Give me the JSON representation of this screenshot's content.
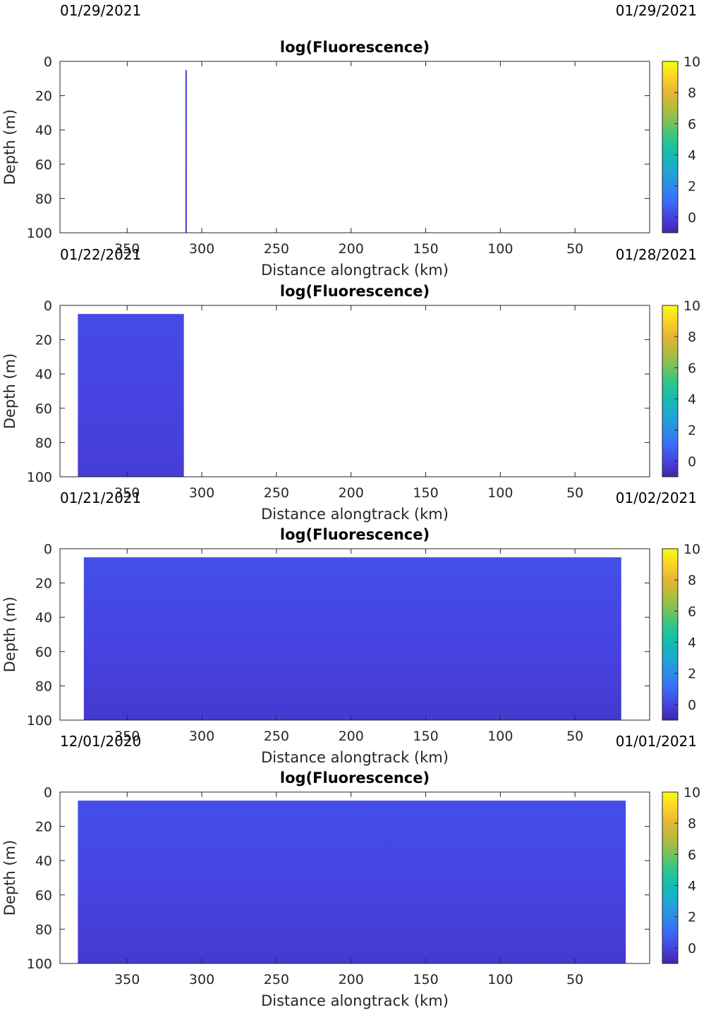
{
  "chart_data": [
    {
      "type": "heatmap",
      "title": "log(Fluorescence)",
      "xlabel": "Distance alongtrack (km)",
      "ylabel": "Depth (m)",
      "date_left": "01/29/2021",
      "date_right": "01/29/2021",
      "xlim": [
        0,
        395
      ],
      "x_reversed": true,
      "ylim": [
        0,
        100
      ],
      "y_reversed": true,
      "x_ticks": [
        350,
        300,
        250,
        200,
        150,
        100,
        50
      ],
      "y_ticks": [
        0,
        20,
        40,
        60,
        80,
        100
      ],
      "colorbar": {
        "limits": [
          -1,
          10
        ],
        "ticks": [
          0,
          2,
          4,
          6,
          8,
          10
        ],
        "colormap": "parula"
      },
      "data_x_range": [
        311,
        310
      ],
      "data_depth_range": [
        5,
        100
      ],
      "value_surface": 0.1,
      "value_deep": -0.1
    },
    {
      "type": "heatmap",
      "title": "log(Fluorescence)",
      "xlabel": "Distance alongtrack (km)",
      "ylabel": "Depth (m)",
      "date_left": "01/22/2021",
      "date_right": "01/28/2021",
      "xlim": [
        0,
        395
      ],
      "x_reversed": true,
      "ylim": [
        0,
        100
      ],
      "y_reversed": true,
      "x_ticks": [
        350,
        300,
        250,
        200,
        150,
        100,
        50
      ],
      "y_ticks": [
        0,
        20,
        40,
        60,
        80,
        100
      ],
      "colorbar": {
        "limits": [
          -1,
          10
        ],
        "ticks": [
          0,
          2,
          4,
          6,
          8,
          10
        ],
        "colormap": "parula"
      },
      "data_x_range": [
        383,
        312
      ],
      "data_depth_range": [
        5,
        100
      ],
      "value_surface": 0.2,
      "value_deep": -0.2
    },
    {
      "type": "heatmap",
      "title": "log(Fluorescence)",
      "xlabel": "Distance alongtrack (km)",
      "ylabel": "Depth (m)",
      "date_left": "01/21/2021",
      "date_right": "01/02/2021",
      "xlim": [
        0,
        395
      ],
      "x_reversed": true,
      "ylim": [
        0,
        100
      ],
      "y_reversed": true,
      "x_ticks": [
        350,
        300,
        250,
        200,
        150,
        100,
        50
      ],
      "y_ticks": [
        0,
        20,
        40,
        60,
        80,
        100
      ],
      "colorbar": {
        "limits": [
          -1,
          10
        ],
        "ticks": [
          0,
          2,
          4,
          6,
          8,
          10
        ],
        "colormap": "parula"
      },
      "data_x_range": [
        379,
        19
      ],
      "data_depth_range": [
        5,
        100
      ],
      "value_surface": 0.3,
      "value_deep": -0.3
    },
    {
      "type": "heatmap",
      "title": "log(Fluorescence)",
      "xlabel": "Distance alongtrack (km)",
      "ylabel": "Depth (m)",
      "date_left": "12/01/2020",
      "date_right": "01/01/2021",
      "xlim": [
        0,
        395
      ],
      "x_reversed": true,
      "ylim": [
        0,
        100
      ],
      "y_reversed": true,
      "x_ticks": [
        350,
        300,
        250,
        200,
        150,
        100,
        50
      ],
      "y_ticks": [
        0,
        20,
        40,
        60,
        80,
        100
      ],
      "colorbar": {
        "limits": [
          -1,
          10
        ],
        "ticks": [
          0,
          2,
          4,
          6,
          8,
          10
        ],
        "colormap": "parula"
      },
      "data_x_range": [
        383,
        16
      ],
      "data_depth_range": [
        5,
        100
      ],
      "value_surface": 0.3,
      "value_deep": -0.3
    }
  ]
}
